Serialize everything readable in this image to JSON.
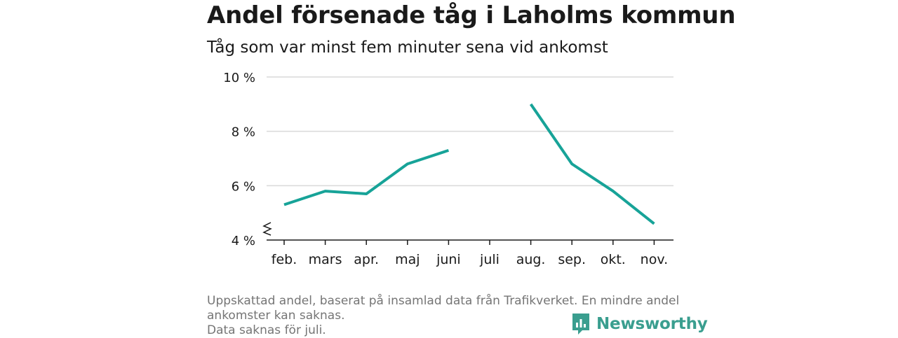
{
  "title": "Andel försenade tåg i Laholms kommun",
  "subtitle": "Tåg som var minst fem minuter sena vid ankomst",
  "footnote": {
    "line1": "Uppskattad andel, baserat på insamlad data från Trafikverket. En mindre andel",
    "line2": "ankomster kan saknas.",
    "line3": "Data saknas för juli."
  },
  "brand": {
    "name": "Newsworthy",
    "color": "#3a9e8f"
  },
  "colors": {
    "line": "#17a398",
    "grid": "#d9d9d9",
    "axis": "#1a1a1a"
  },
  "chart_data": {
    "type": "line",
    "title": "Andel försenade tåg i Laholms kommun",
    "subtitle": "Tåg som var minst fem minuter sena vid ankomst",
    "categories": [
      "feb.",
      "mars",
      "apr.",
      "maj",
      "juni",
      "juli",
      "aug.",
      "sep.",
      "okt.",
      "nov."
    ],
    "series": [
      {
        "values": [
          5.3,
          5.8,
          5.7,
          6.8,
          7.3,
          null,
          9.0,
          6.8,
          5.8,
          4.6
        ]
      }
    ],
    "ylim": [
      4,
      10
    ],
    "yticks": [
      4,
      6,
      8,
      10
    ],
    "ytick_labels": [
      "4 %",
      "6 %",
      "8 %",
      "10 %"
    ],
    "axis_break": true,
    "grid": true,
    "xlabel": "",
    "ylabel": ""
  }
}
